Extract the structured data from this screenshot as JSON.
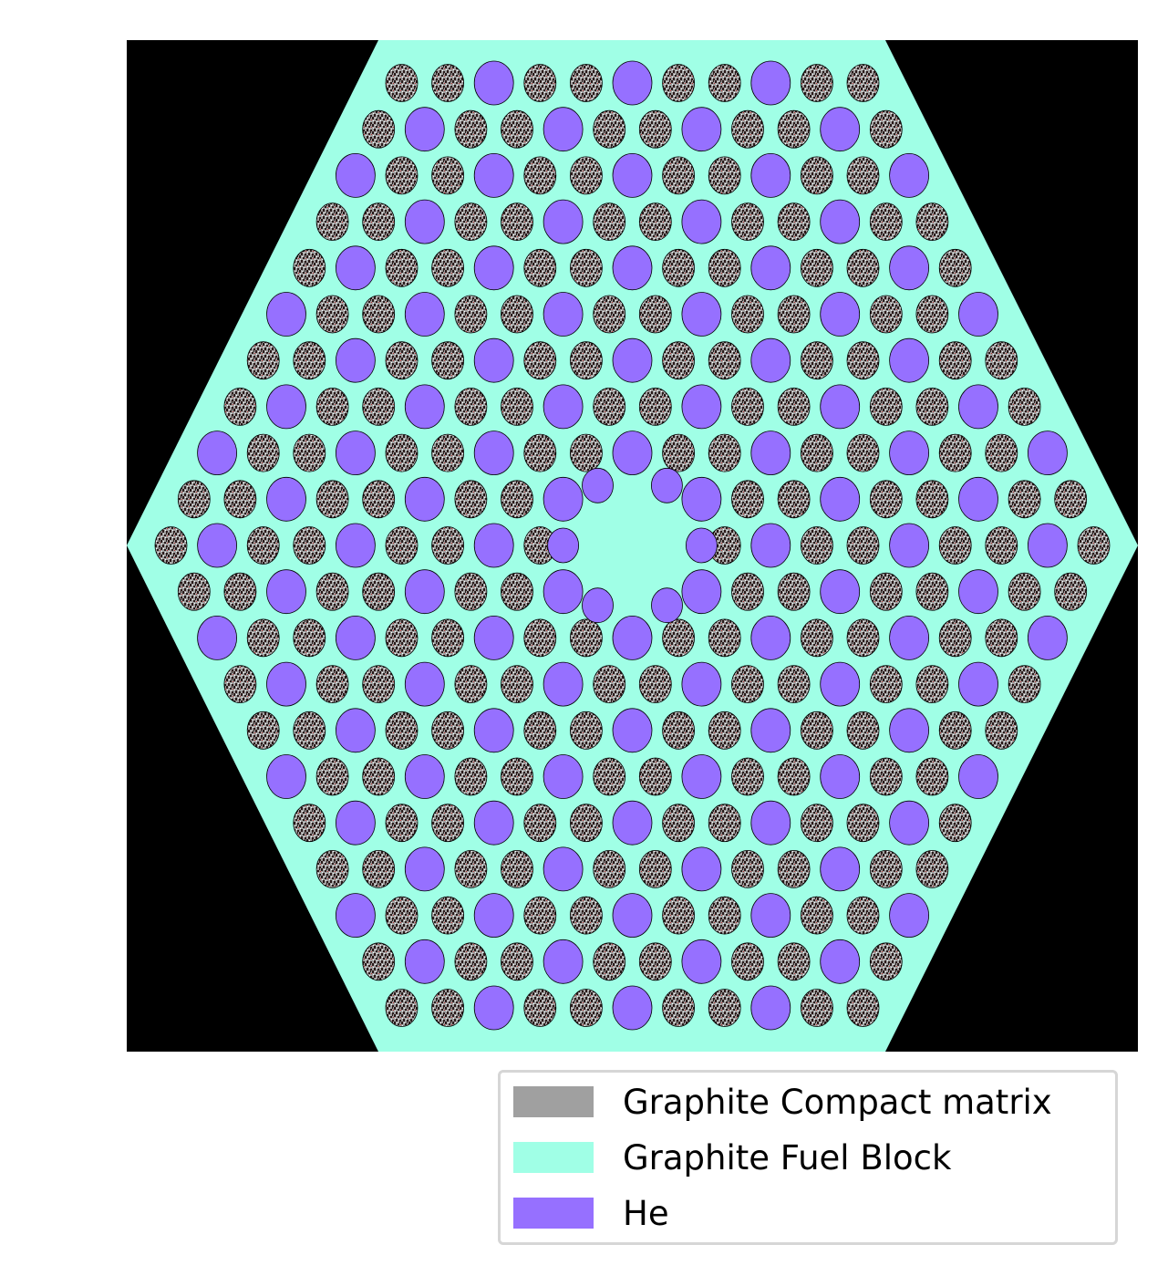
{
  "figure": {
    "background_color": "#000000",
    "block_color": "#a0ffe6",
    "compact_color": "#a0a0a0",
    "fuel_particle_color": "#2a1a1a",
    "he_color": "#9670ff"
  },
  "lattice": {
    "rows": 21,
    "center_row": 10,
    "pattern": "Channel type cycles He / compact / compact along diagonals; central 7-channel hexagonal region filled with graphite; 6 small He holes surround the center.",
    "center_small_he_count": 6
  },
  "legend": {
    "items": [
      {
        "label": "Graphite Compact matrix",
        "color": "#a0a0a0"
      },
      {
        "label": "Graphite Fuel Block",
        "color": "#a0ffe6"
      },
      {
        "label": "He",
        "color": "#9670ff"
      }
    ]
  }
}
